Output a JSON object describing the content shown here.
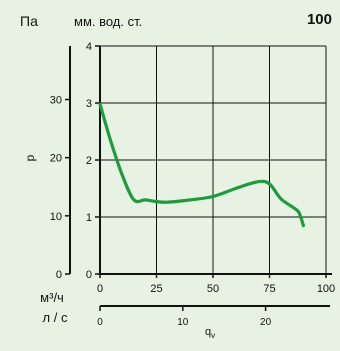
{
  "chart_data": {
    "type": "line",
    "title": "100",
    "unit_pa": "Па",
    "unit_mm": "мм. вод. ст.",
    "ylabel": "p",
    "xlabel": "q",
    "xlabel_sub": "v",
    "unit_m3h": "м³/ч",
    "unit_ls": "л / с",
    "xlim": [
      0,
      100
    ],
    "ylim": [
      0,
      4
    ],
    "pa_lim": [
      0,
      39.2
    ],
    "ls_lim": [
      0,
      27.78
    ],
    "x_ticks": [
      0,
      25,
      50,
      75,
      100
    ],
    "y_ticks": [
      0,
      1,
      2,
      3,
      4
    ],
    "pa_ticks": [
      0,
      10,
      20,
      30
    ],
    "ls_ticks": [
      0,
      10,
      20
    ],
    "grid": true,
    "color": "#1f9a3f",
    "series": [
      {
        "x": [
          0,
          5,
          10,
          15,
          20,
          25,
          30,
          40,
          50,
          60,
          70,
          75,
          80,
          85,
          88,
          90
        ],
        "values": [
          2.98,
          2.3,
          1.72,
          1.3,
          1.3,
          1.27,
          1.26,
          1.3,
          1.36,
          1.5,
          1.62,
          1.58,
          1.32,
          1.18,
          1.08,
          0.85
        ]
      }
    ]
  }
}
